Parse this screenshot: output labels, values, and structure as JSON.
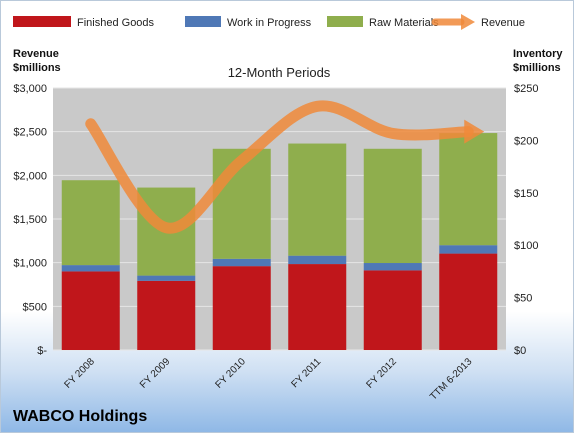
{
  "chart_data": {
    "type": "bar",
    "stacked": true,
    "title": "12-Month Periods",
    "company": "WABCO Holdings",
    "left_axis_label_line1": "Revenue",
    "left_axis_label_line2": "$millions",
    "right_axis_label_line1": "Inventory",
    "right_axis_label_line2": "$millions",
    "categories": [
      "FY 2008",
      "FY 2009",
      "FY 2010",
      "FY 2011",
      "FY 2012",
      "TTM 6-2013"
    ],
    "left_ylim": [
      0,
      3000
    ],
    "right_ylim": [
      0,
      250
    ],
    "left_ticks": [
      "$-",
      "$500",
      "$1,000",
      "$1,500",
      "$2,000",
      "$2,500",
      "$3,000"
    ],
    "right_ticks": [
      "$0",
      "$50",
      "$100",
      "$150",
      "$200",
      "$250"
    ],
    "legend_position": "top",
    "grid": true,
    "series": [
      {
        "name": "Finished Goods",
        "axis": "right",
        "color": "#c0161b",
        "values": [
          75,
          66,
          80,
          82,
          76,
          92
        ]
      },
      {
        "name": "Work in Progress",
        "axis": "right",
        "color": "#4f78b6",
        "values": [
          6,
          5,
          7,
          8,
          7,
          8
        ]
      },
      {
        "name": "Raw Materials",
        "axis": "right",
        "color": "#8fae4d",
        "values": [
          81,
          84,
          105,
          107,
          109,
          107
        ]
      },
      {
        "name": "Revenue",
        "axis": "left",
        "type": "line",
        "color": "#f0893a",
        "values": [
          2590,
          1400,
          2170,
          2790,
          2480,
          2500
        ]
      }
    ]
  }
}
